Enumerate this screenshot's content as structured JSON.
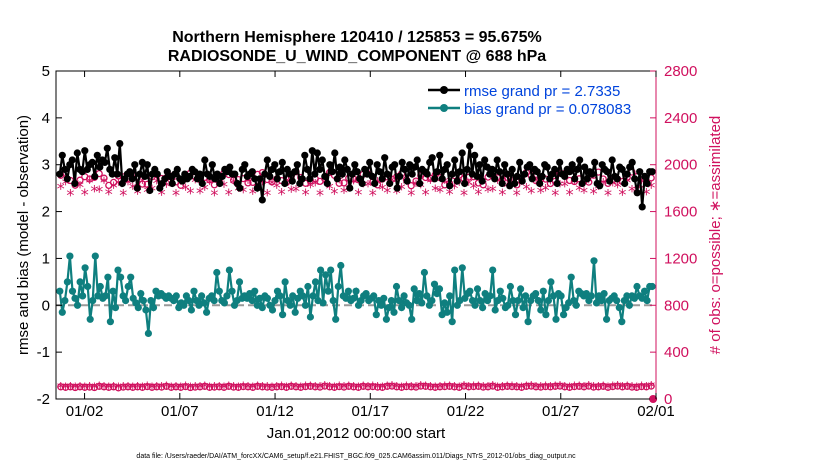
{
  "chart_data": {
    "type": "line",
    "title_line1": "Northern Hemisphere 120410 / 125853 = 95.675%",
    "title_line2": "RADIOSONDE_U_WIND_COMPONENT @ 688 hPa",
    "xlabel": "Jan.01,2012 00:00:00 start",
    "ylabel_left": "rmse and bias (model - observation)",
    "ylabel_right": "# of obs: o=possible; ∗=assimilated",
    "footer": "data file: /Users/raeder/DAI/ATM_forcXX/CAM6_setup/f.e21.FHIST_BGC.f09_025.CAM6assim.011/Diags_NTrS_2012-01/obs_diag_output.nc",
    "x_range": [
      0.5,
      32.0
    ],
    "x_ticks": [
      2,
      7,
      12,
      17,
      22,
      27,
      32
    ],
    "x_tick_labels": [
      "01/02",
      "01/07",
      "01/12",
      "01/17",
      "01/22",
      "01/27",
      "02/01"
    ],
    "ylim_left": [
      -2,
      5
    ],
    "y_ticks_left": [
      "-2",
      "-1",
      "0",
      "1",
      "2",
      "3",
      "4",
      "5"
    ],
    "ylim_right": [
      0,
      2800
    ],
    "y_ticks_right": [
      "0",
      "400",
      "800",
      "1200",
      "1600",
      "2000",
      "2400",
      "2800"
    ],
    "legend_position": "top-right",
    "colors": {
      "rmse": "#000000",
      "bias": "#0f7f7f",
      "obs": "#d0105e",
      "legend_text": "#0044dd",
      "zero_line": "#999999"
    },
    "series": [
      {
        "name": "rmse grand pr = 2.7335",
        "values": [
          2.8,
          3.2,
          2.9,
          2.7,
          3.0,
          3.1,
          2.6,
          3.25,
          2.9,
          2.85,
          3.3,
          2.9,
          3.0,
          3.05,
          2.75,
          3.2,
          2.95,
          3.1,
          3.05,
          3.35,
          2.9,
          2.8,
          3.15,
          2.8,
          3.45,
          2.6,
          2.7,
          2.8,
          2.85,
          2.7,
          3.0,
          2.5,
          2.8,
          3.05,
          2.75,
          3.0,
          2.45,
          2.8,
          2.9,
          2.8,
          2.5,
          2.6,
          2.7,
          2.85,
          2.75,
          2.6,
          2.8,
          2.9,
          2.7,
          2.65,
          2.8,
          2.7,
          2.75,
          2.9,
          2.85,
          2.7,
          2.8,
          2.6,
          3.1,
          2.8,
          2.75,
          3.0,
          2.7,
          2.8,
          2.6,
          2.75,
          2.9,
          2.85,
          2.95,
          2.8,
          2.8,
          2.6,
          2.5,
          2.9,
          3.0,
          2.75,
          2.8,
          2.85,
          2.7,
          2.5,
          2.7,
          2.25,
          2.8,
          3.1,
          2.75,
          2.9,
          3.0,
          2.7,
          2.85,
          3.05,
          2.6,
          2.9,
          2.8,
          2.65,
          2.85,
          3.0,
          2.6,
          2.7,
          3.2,
          2.9,
          2.7,
          3.3,
          2.8,
          3.25,
          2.9,
          3.1,
          2.75,
          2.6,
          3.0,
          2.85,
          3.25,
          2.7,
          2.95,
          2.8,
          3.1,
          2.9,
          2.5,
          2.8,
          3.0,
          2.85,
          2.7,
          2.6,
          2.9,
          2.8,
          3.05,
          2.75,
          2.6,
          3.0,
          2.85,
          2.7,
          3.15,
          2.8,
          2.6,
          2.95,
          3.0,
          2.5,
          2.75,
          3.05,
          2.9,
          2.65,
          3.0,
          2.8,
          2.95,
          3.1,
          2.6,
          2.9,
          2.85,
          2.8,
          3.05,
          3.15,
          2.7,
          2.85,
          3.2,
          2.7,
          2.9,
          3.0,
          2.55,
          2.8,
          3.1,
          2.65,
          2.85,
          3.25,
          2.6,
          2.9,
          3.4,
          2.8,
          3.2,
          2.75,
          3.0,
          2.65,
          3.1,
          2.95,
          2.8,
          2.9,
          2.7,
          3.1,
          2.85,
          2.6,
          3.0,
          2.8,
          2.55,
          2.9,
          2.6,
          2.75,
          3.05,
          2.65,
          2.8,
          2.95,
          3.0,
          2.7,
          2.9,
          2.85,
          2.6,
          2.75,
          3.0,
          2.95,
          2.7,
          2.8,
          2.9,
          2.6,
          3.05,
          2.8,
          2.75,
          2.9,
          2.85,
          3.0,
          2.7,
          2.9,
          3.1,
          2.6,
          2.95,
          2.7,
          2.85,
          2.8,
          3.05,
          2.6,
          2.55,
          3.0,
          2.9,
          2.85,
          2.65,
          3.1,
          2.75,
          2.7,
          2.95,
          2.9,
          2.6,
          2.8,
          2.95,
          3.05,
          2.7,
          2.4,
          2.85,
          2.1,
          2.75,
          2.6,
          2.85,
          2.85
        ]
      },
      {
        "name": "bias grand pr = 0.078083",
        "values": [
          0.3,
          -0.15,
          0.1,
          0.5,
          1.05,
          0.3,
          0.15,
          0.0,
          0.5,
          0.2,
          0.8,
          0.4,
          -0.3,
          0.1,
          1.05,
          0.2,
          0.4,
          0.15,
          0.2,
          0.6,
          -0.35,
          0.3,
          -0.05,
          0.75,
          0.6,
          0.2,
          0.1,
          0.4,
          0.6,
          0.15,
          0.05,
          -0.05,
          0.25,
          0.1,
          -0.1,
          -0.6,
          0.1,
          -0.05,
          0.3,
          0.2,
          0.25,
          0.2,
          0.15,
          0.2,
          0.15,
          0.1,
          0.2,
          -0.05,
          0.05,
          0.0,
          0.2,
          0.1,
          -0.1,
          0.3,
          0.1,
          0.0,
          0.2,
          0.05,
          -0.15,
          0.15,
          0.2,
          0.1,
          0.7,
          0.3,
          0.1,
          0.05,
          0.2,
          0.75,
          0.3,
          0.0,
          0.1,
          0.5,
          0.15,
          0.2,
          0.15,
          0.25,
          0.1,
          0.3,
          0.0,
          0.15,
          -0.05,
          0.2,
          0.15,
          0.0,
          -0.1,
          0.1,
          0.3,
          0.2,
          -0.2,
          0.5,
          0.1,
          0.0,
          0.2,
          -0.15,
          0.15,
          0.3,
          0.2,
          0.0,
          0.4,
          -0.25,
          0.2,
          0.5,
          0.1,
          0.75,
          0.05,
          0.65,
          0.3,
          0.75,
          0.1,
          -0.3,
          0.4,
          0.85,
          0.2,
          0.15,
          0.3,
          0.1,
          0.15,
          0.3,
          0.0,
          0.1,
          0.2,
          0.25,
          0.1,
          0.15,
          0.2,
          -0.2,
          0.1,
          0.0,
          0.15,
          -0.3,
          -0.05,
          0.1,
          -0.15,
          0.4,
          0.1,
          -0.05,
          0.2,
          0.05,
          0.0,
          -0.3,
          0.35,
          0.1,
          0.25,
          0.05,
          0.7,
          0.2,
          0.0,
          0.1,
          0.45,
          0.25,
          0.35,
          -0.2,
          0.05,
          -0.15,
          0.2,
          -0.35,
          0.75,
          0.0,
          0.1,
          0.8,
          0.15,
          0.25,
          0.3,
          0.1,
          0.0,
          0.35,
          0.1,
          -0.05,
          0.25,
          0.1,
          0.2,
          0.75,
          -0.1,
          0.1,
          0.3,
          0.15,
          -0.05,
          0.0,
          0.4,
          0.1,
          -0.2,
          0.1,
          0.35,
          -0.05,
          0.2,
          -0.35,
          0.1,
          0.2,
          0.25,
          0.1,
          -0.1,
          0.3,
          -0.2,
          0.1,
          0.5,
          0.2,
          -0.3,
          0.25,
          0.2,
          -0.2,
          -0.05,
          0.05,
          0.6,
          0.1,
          0.0,
          0.3,
          0.25,
          0.2,
          0.25,
          0.1,
          0.2,
          0.95,
          0.05,
          0.2,
          0.1,
          0.25,
          -0.3,
          0.1,
          0.15,
          0.2,
          0.1,
          -0.05,
          -0.35,
          0.1,
          0.2,
          0.0,
          0.2,
          0.15,
          0.4,
          0.2,
          0.15,
          0.3,
          0.1,
          0.4,
          0.4
        ]
      },
      {
        "name": "obs possible",
        "values": [
          104,
          100,
          104,
          98,
          104,
          100,
          102,
          98,
          108,
          104,
          100,
          104,
          96,
          102,
          104,
          100,
          104,
          100,
          106,
          100,
          104,
          102,
          108,
          100,
          104,
          100,
          106,
          98,
          102,
          104,
          108,
          100,
          102,
          104,
          100,
          108,
          102,
          100,
          106,
          104,
          100,
          108,
          104,
          102,
          100,
          104,
          106,
          100,
          108,
          104,
          100,
          106,
          108,
          104,
          102,
          110,
          104,
          100,
          106,
          102,
          108,
          104,
          100,
          108,
          104,
          106,
          102,
          100,
          108,
          110,
          104,
          100,
          106,
          104,
          102,
          110,
          108,
          104,
          100,
          104,
          106,
          108,
          104,
          100,
          110,
          104,
          106,
          108,
          102,
          104,
          110,
          100,
          104,
          108,
          106,
          104,
          100,
          108,
          110,
          104,
          102,
          106,
          104,
          108,
          110,
          104,
          100,
          106,
          108,
          104,
          110,
          102,
          104,
          108,
          100,
          106,
          110,
          104,
          108,
          102,
          100,
          106,
          104,
          110,
          108,
          104,
          102,
          100,
          106,
          110,
          104,
          108,
          100,
          104,
          106,
          102,
          110,
          104,
          100,
          108,
          104,
          106,
          102,
          110,
          104,
          108,
          100,
          106,
          104,
          102,
          110,
          100,
          104,
          108,
          106,
          104,
          102,
          110,
          104,
          100,
          106,
          108,
          104,
          102,
          110,
          104,
          106,
          100,
          108,
          104,
          102,
          106,
          110,
          104,
          100,
          108,
          104,
          102,
          106,
          110,
          104,
          108,
          100,
          104,
          106,
          102,
          110,
          104,
          100,
          108,
          104,
          106,
          102,
          100,
          110,
          104,
          108,
          106,
          102,
          104,
          100,
          108,
          110,
          104,
          106,
          102,
          100,
          104,
          108,
          104,
          106,
          102,
          110,
          104,
          100,
          108,
          106,
          104,
          102,
          110,
          104,
          100,
          106,
          108,
          104,
          102,
          110,
          104,
          100,
          106,
          104,
          102,
          108,
          104,
          110,
          106,
          100,
          104,
          102,
          108,
          104,
          110,
          106,
          104,
          100,
          102,
          108,
          104,
          106,
          110,
          104,
          100,
          102,
          108,
          104,
          106,
          110,
          104,
          100,
          102,
          108,
          104,
          106,
          110,
          104,
          100,
          102,
          106,
          108,
          104,
          110,
          100,
          104,
          102,
          106,
          108,
          104,
          110,
          100,
          104,
          102,
          106,
          108,
          104,
          110,
          100,
          104,
          102,
          106,
          108,
          104,
          110,
          100,
          104,
          102,
          106,
          108,
          104,
          110,
          100,
          104,
          102,
          106,
          108,
          104,
          110,
          100,
          104,
          102,
          106,
          108,
          104,
          110,
          100,
          104,
          102,
          106,
          108,
          104,
          110,
          100
        ]
      }
    ],
    "obs_count_note": "upper o/* band ~1750-2000 obs; lower band ~90-150 obs"
  }
}
